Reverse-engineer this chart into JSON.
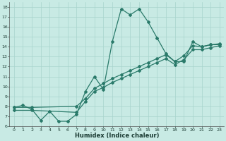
{
  "xlabel": "Humidex (Indice chaleur)",
  "background_color": "#c8eae4",
  "grid_color": "#a8d4cc",
  "line_color": "#2a7a6a",
  "xlim": [
    -0.5,
    23.5
  ],
  "ylim": [
    6,
    18.5
  ],
  "xticks": [
    0,
    1,
    2,
    3,
    4,
    5,
    6,
    7,
    8,
    9,
    10,
    11,
    12,
    13,
    14,
    15,
    16,
    17,
    18,
    19,
    20,
    21,
    22,
    23
  ],
  "yticks": [
    6,
    7,
    8,
    9,
    10,
    11,
    12,
    13,
    14,
    15,
    16,
    17,
    18
  ],
  "line1_x": [
    0,
    1,
    2,
    3,
    4,
    5,
    6,
    7,
    8,
    9,
    10,
    11,
    12,
    13,
    14,
    15,
    16,
    17,
    18,
    19,
    20,
    21,
    22,
    23
  ],
  "line1_y": [
    7.9,
    8.1,
    7.7,
    6.6,
    7.5,
    6.5,
    6.5,
    7.2,
    9.5,
    11.0,
    9.7,
    14.5,
    17.8,
    17.2,
    17.8,
    16.5,
    14.9,
    13.3,
    12.5,
    12.5,
    14.5,
    14.0,
    14.2,
    14.2
  ],
  "line2_x": [
    0,
    2,
    7,
    8,
    9,
    10,
    11,
    12,
    13,
    14,
    15,
    16,
    17,
    18,
    19,
    20,
    21,
    22,
    23
  ],
  "line2_y": [
    7.9,
    7.9,
    8.0,
    8.8,
    9.8,
    10.3,
    10.8,
    11.2,
    11.6,
    12.0,
    12.4,
    12.8,
    13.2,
    12.5,
    13.1,
    14.1,
    14.0,
    14.2,
    14.3
  ],
  "line3_x": [
    0,
    2,
    7,
    8,
    9,
    10,
    11,
    12,
    13,
    14,
    15,
    16,
    17,
    18,
    19,
    20,
    21,
    22,
    23
  ],
  "line3_y": [
    7.6,
    7.6,
    7.4,
    8.5,
    9.5,
    9.9,
    10.4,
    10.8,
    11.2,
    11.6,
    12.0,
    12.4,
    12.8,
    12.2,
    12.7,
    13.7,
    13.7,
    13.9,
    14.1
  ]
}
